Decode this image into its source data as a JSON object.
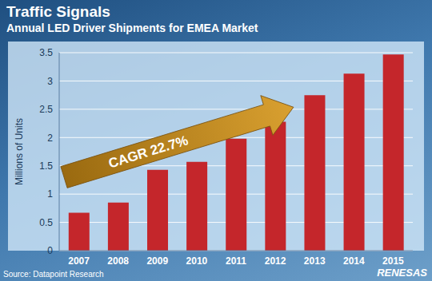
{
  "chart_data": {
    "type": "bar",
    "title": "Traffic Signals",
    "subtitle": "Annual LED Driver Shipments for EMEA Market",
    "y_label": "Millions of Units",
    "categories": [
      "2007",
      "2008",
      "2009",
      "2010",
      "2011",
      "2012",
      "2013",
      "2014",
      "2015"
    ],
    "values": [
      0.67,
      0.85,
      1.43,
      1.57,
      1.98,
      2.28,
      2.75,
      3.13,
      3.47
    ],
    "color": "#c4262b",
    "ylim": [
      0,
      3.5
    ],
    "yticks": [
      0,
      0.5,
      1,
      1.5,
      2,
      2.5,
      3,
      3.5
    ],
    "grid": true,
    "annotation": "CAGR 22.7%",
    "source": "Source: Datapoint Research",
    "logo": "RENESAS"
  }
}
